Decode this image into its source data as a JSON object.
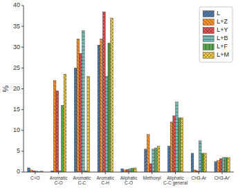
{
  "chart_data": {
    "type": "bar",
    "categories": [
      "C=O",
      "Aromatic\nC-O",
      "Aromatic\nC-C",
      "Aromatic\nC-H",
      "Aliphatic\nC-O",
      "Methoxyl",
      "Aliphatic\nC-C general",
      "CH3-Ar",
      "CH3-Ar'"
    ],
    "series": [
      {
        "name": "L",
        "color": "#4e79a7",
        "values": [
          1.0,
          0.3,
          25.0,
          30.5,
          0.8,
          5.5,
          6.2,
          4.5,
          2.5
        ]
      },
      {
        "name": "L+Z",
        "color": "#f28e2b",
        "values": [
          0.5,
          22.0,
          32.0,
          32.0,
          0.5,
          9.0,
          12.0,
          0.5,
          2.8
        ]
      },
      {
        "name": "L+Y",
        "color": "#e15759",
        "values": [
          0.3,
          19.5,
          28.5,
          38.5,
          0.6,
          2.0,
          13.5,
          0.3,
          3.2
        ]
      },
      {
        "name": "L+B",
        "color": "#76b7b2",
        "values": [
          0.2,
          0.3,
          34.0,
          23.0,
          0.8,
          5.5,
          16.8,
          7.5,
          3.5
        ]
      },
      {
        "name": "L+F",
        "color": "#59a14f",
        "values": [
          0.1,
          16.0,
          0.3,
          31.0,
          0.9,
          5.8,
          13.0,
          4.5,
          3.5
        ]
      },
      {
        "name": "L+M",
        "color": "#edc948",
        "values": [
          0.2,
          23.5,
          23.0,
          37.0,
          1.0,
          6.2,
          13.0,
          4.5,
          3.5
        ]
      }
    ],
    "y_label": "%",
    "ylim": [
      0,
      40
    ],
    "yticks": [
      0,
      5,
      10,
      15,
      20,
      25,
      30,
      35,
      40
    ],
    "grid": false,
    "legend": "upper right"
  }
}
